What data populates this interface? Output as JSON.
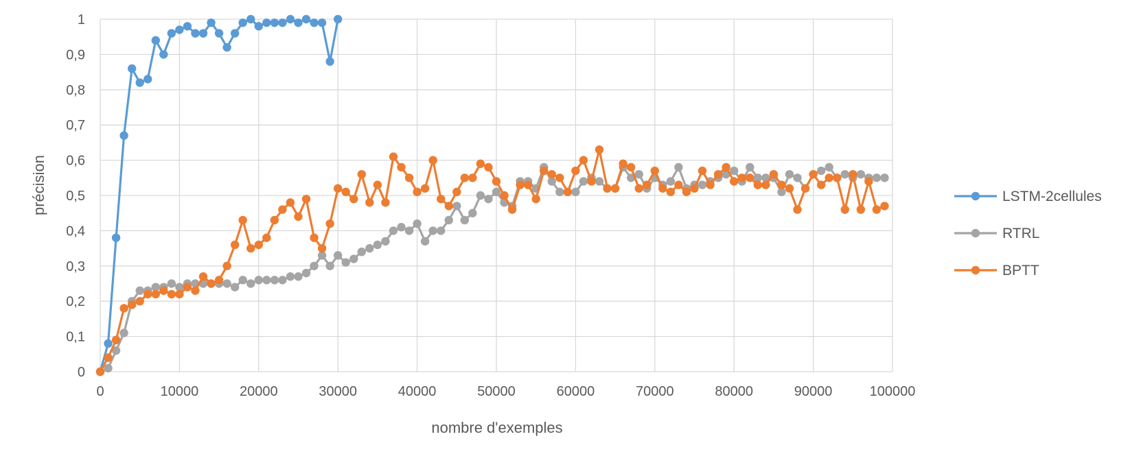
{
  "chart_data": {
    "type": "line",
    "title": "",
    "xlabel": "nombre d'exemples",
    "ylabel": "précision",
    "xlim": [
      0,
      100000
    ],
    "ylim": [
      0,
      1
    ],
    "x_ticks": [
      0,
      10000,
      20000,
      30000,
      40000,
      50000,
      60000,
      70000,
      80000,
      90000,
      100000
    ],
    "x_tick_labels": [
      "0",
      "10000",
      "20000",
      "30000",
      "40000",
      "50000",
      "60000",
      "70000",
      "80000",
      "90000",
      "100000"
    ],
    "y_ticks": [
      0,
      0.1,
      0.2,
      0.3,
      0.4,
      0.5,
      0.6,
      0.7,
      0.8,
      0.9,
      1
    ],
    "y_tick_labels": [
      "0",
      "0,1",
      "0,2",
      "0,3",
      "0,4",
      "0,5",
      "0,6",
      "0,7",
      "0,8",
      "0,9",
      "1"
    ],
    "grid": true,
    "legend_position": "right",
    "series": [
      {
        "name": "LSTM-2cellules",
        "color": "#5b9bd5",
        "x": [
          0,
          1000,
          2000,
          3000,
          4000,
          5000,
          6000,
          7000,
          8000,
          9000,
          10000,
          11000,
          12000,
          13000,
          14000,
          15000,
          16000,
          17000,
          18000,
          19000,
          20000,
          21000,
          22000,
          23000,
          24000,
          25000,
          26000,
          27000,
          28000,
          29000,
          30000
        ],
        "y": [
          0,
          0.08,
          0.38,
          0.67,
          0.86,
          0.82,
          0.83,
          0.94,
          0.9,
          0.96,
          0.97,
          0.98,
          0.96,
          0.96,
          0.99,
          0.96,
          0.92,
          0.96,
          0.99,
          1.0,
          0.98,
          0.99,
          0.99,
          0.99,
          1.0,
          0.99,
          1.0,
          0.99,
          0.99,
          0.88,
          1.0
        ]
      },
      {
        "name": "RTRL",
        "color": "#a5a5a5",
        "x": [
          0,
          1000,
          2000,
          3000,
          4000,
          5000,
          6000,
          7000,
          8000,
          9000,
          10000,
          11000,
          12000,
          13000,
          14000,
          15000,
          16000,
          17000,
          18000,
          19000,
          20000,
          21000,
          22000,
          23000,
          24000,
          25000,
          26000,
          27000,
          28000,
          29000,
          30000,
          31000,
          32000,
          33000,
          34000,
          35000,
          36000,
          37000,
          38000,
          39000,
          40000,
          41000,
          42000,
          43000,
          44000,
          45000,
          46000,
          47000,
          48000,
          49000,
          50000,
          51000,
          52000,
          53000,
          54000,
          55000,
          56000,
          57000,
          58000,
          59000,
          60000,
          61000,
          62000,
          63000,
          64000,
          65000,
          66000,
          67000,
          68000,
          69000,
          70000,
          71000,
          72000,
          73000,
          74000,
          75000,
          76000,
          77000,
          78000,
          79000,
          80000,
          81000,
          82000,
          83000,
          84000,
          85000,
          86000,
          87000,
          88000,
          89000,
          90000,
          91000,
          92000,
          93000,
          94000,
          95000,
          96000,
          97000,
          98000,
          99000
        ],
        "y": [
          0,
          0.01,
          0.06,
          0.11,
          0.2,
          0.23,
          0.23,
          0.24,
          0.24,
          0.25,
          0.24,
          0.25,
          0.25,
          0.25,
          0.25,
          0.25,
          0.25,
          0.24,
          0.26,
          0.25,
          0.26,
          0.26,
          0.26,
          0.26,
          0.27,
          0.27,
          0.28,
          0.3,
          0.33,
          0.3,
          0.33,
          0.31,
          0.32,
          0.34,
          0.35,
          0.36,
          0.37,
          0.4,
          0.41,
          0.4,
          0.42,
          0.37,
          0.4,
          0.4,
          0.43,
          0.47,
          0.43,
          0.45,
          0.5,
          0.49,
          0.51,
          0.48,
          0.47,
          0.54,
          0.54,
          0.52,
          0.58,
          0.54,
          0.51,
          0.51,
          0.51,
          0.54,
          0.55,
          0.54,
          0.52,
          0.52,
          0.58,
          0.55,
          0.56,
          0.52,
          0.55,
          0.53,
          0.54,
          0.58,
          0.52,
          0.53,
          0.53,
          0.54,
          0.55,
          0.56,
          0.57,
          0.54,
          0.58,
          0.55,
          0.55,
          0.55,
          0.51,
          0.56,
          0.55,
          0.52,
          0.56,
          0.57,
          0.58,
          0.55,
          0.56,
          0.55,
          0.56,
          0.55,
          0.55,
          0.55
        ]
      },
      {
        "name": "BPTT",
        "color": "#ed7d31",
        "x": [
          0,
          1000,
          2000,
          3000,
          4000,
          5000,
          6000,
          7000,
          8000,
          9000,
          10000,
          11000,
          12000,
          13000,
          14000,
          15000,
          16000,
          17000,
          18000,
          19000,
          20000,
          21000,
          22000,
          23000,
          24000,
          25000,
          26000,
          27000,
          28000,
          29000,
          30000,
          31000,
          32000,
          33000,
          34000,
          35000,
          36000,
          37000,
          38000,
          39000,
          40000,
          41000,
          42000,
          43000,
          44000,
          45000,
          46000,
          47000,
          48000,
          49000,
          50000,
          51000,
          52000,
          53000,
          54000,
          55000,
          56000,
          57000,
          58000,
          59000,
          60000,
          61000,
          62000,
          63000,
          64000,
          65000,
          66000,
          67000,
          68000,
          69000,
          70000,
          71000,
          72000,
          73000,
          74000,
          75000,
          76000,
          77000,
          78000,
          79000,
          80000,
          81000,
          82000,
          83000,
          84000,
          85000,
          86000,
          87000,
          88000,
          89000,
          90000,
          91000,
          92000,
          93000,
          94000,
          95000,
          96000,
          97000,
          98000,
          99000
        ],
        "y": [
          0,
          0.04,
          0.09,
          0.18,
          0.19,
          0.2,
          0.22,
          0.22,
          0.23,
          0.22,
          0.22,
          0.24,
          0.23,
          0.27,
          0.25,
          0.26,
          0.3,
          0.36,
          0.43,
          0.35,
          0.36,
          0.38,
          0.43,
          0.46,
          0.48,
          0.44,
          0.49,
          0.38,
          0.35,
          0.42,
          0.52,
          0.51,
          0.49,
          0.56,
          0.48,
          0.53,
          0.48,
          0.61,
          0.58,
          0.55,
          0.51,
          0.52,
          0.6,
          0.49,
          0.47,
          0.51,
          0.55,
          0.55,
          0.59,
          0.58,
          0.54,
          0.5,
          0.46,
          0.53,
          0.53,
          0.49,
          0.57,
          0.56,
          0.55,
          0.51,
          0.57,
          0.6,
          0.54,
          0.63,
          0.52,
          0.52,
          0.59,
          0.58,
          0.52,
          0.53,
          0.57,
          0.52,
          0.51,
          0.53,
          0.51,
          0.52,
          0.57,
          0.53,
          0.56,
          0.58,
          0.54,
          0.55,
          0.55,
          0.53,
          0.53,
          0.56,
          0.53,
          0.52,
          0.46,
          0.52,
          0.56,
          0.53,
          0.55,
          0.55,
          0.46,
          0.56,
          0.46,
          0.54,
          0.46,
          0.47
        ]
      }
    ]
  }
}
